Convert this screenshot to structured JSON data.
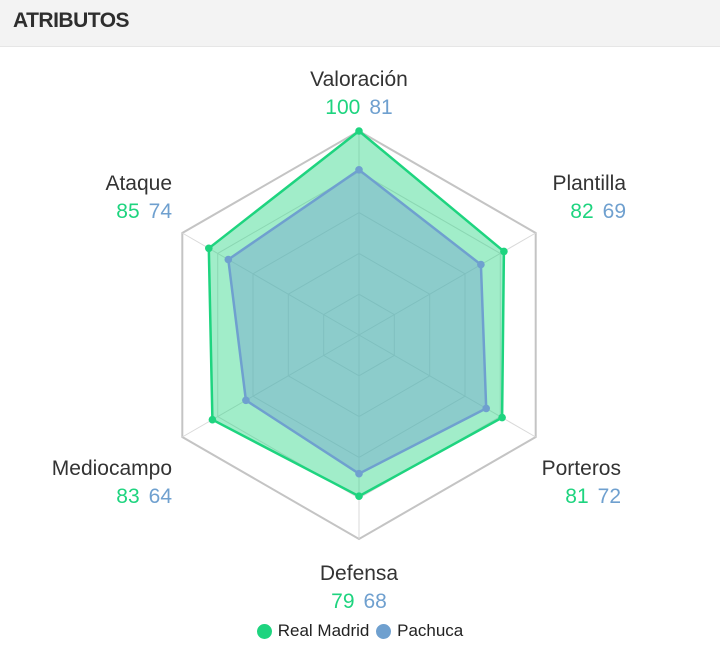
{
  "header": {
    "title": "ATRIBUTOS"
  },
  "chart_data": {
    "type": "radar",
    "max": 100,
    "grid_levels": 5,
    "axes": [
      "Valoración",
      "Plantilla",
      "Porteros",
      "Defensa",
      "Mediocampo",
      "Ataque"
    ],
    "series": [
      {
        "name": "Real Madrid",
        "color": "#1ed47f",
        "values": [
          100,
          82,
          81,
          79,
          83,
          85
        ]
      },
      {
        "name": "Pachuca",
        "color": "#6fa0cf",
        "values": [
          81,
          69,
          72,
          68,
          64,
          74
        ]
      }
    ],
    "legend": "bottom"
  }
}
